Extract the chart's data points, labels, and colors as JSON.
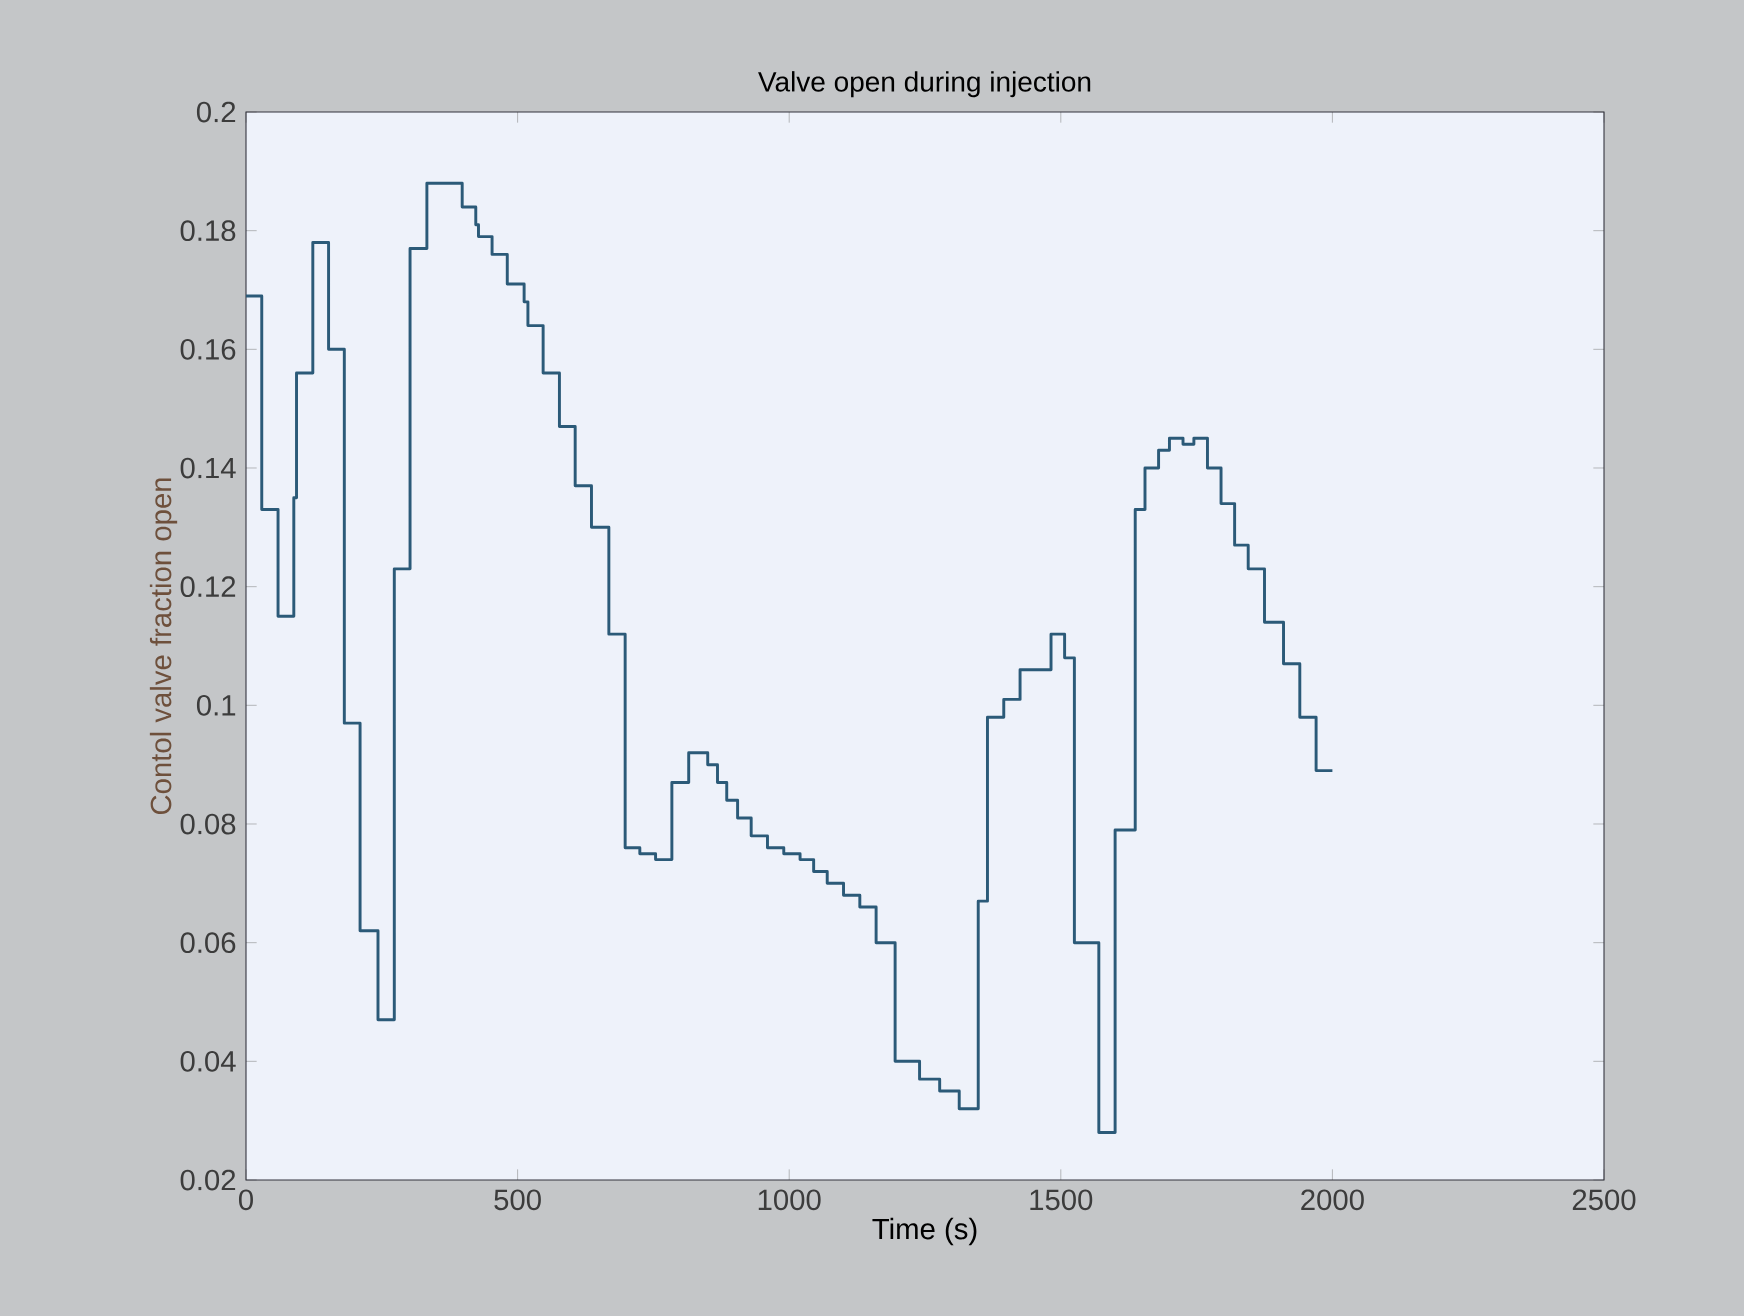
{
  "chart_data": {
    "type": "step",
    "title": "Valve open during injection",
    "xlabel": "Time (s)",
    "ylabel": "Contol valve fraction open",
    "x": [
      0,
      29,
      59,
      88,
      93,
      123,
      152,
      181,
      210,
      243,
      273,
      302,
      333,
      398,
      423,
      428,
      453,
      481,
      512,
      519,
      547,
      577,
      606,
      636,
      668,
      698,
      725,
      754,
      784,
      815,
      850,
      868,
      885,
      905,
      930,
      960,
      990,
      1020,
      1045,
      1070,
      1100,
      1130,
      1160,
      1195,
      1240,
      1277,
      1313,
      1348,
      1365,
      1395,
      1425,
      1482,
      1507,
      1525,
      1570,
      1600,
      1637,
      1655,
      1680,
      1700,
      1725,
      1745,
      1770,
      1795,
      1820,
      1845,
      1875,
      1910,
      1940,
      1970,
      2000
    ],
    "values": [
      0.169,
      0.133,
      0.115,
      0.135,
      0.156,
      0.178,
      0.16,
      0.097,
      0.062,
      0.047,
      0.123,
      0.177,
      0.188,
      0.184,
      0.181,
      0.179,
      0.176,
      0.171,
      0.168,
      0.164,
      0.156,
      0.147,
      0.137,
      0.13,
      0.112,
      0.076,
      0.075,
      0.074,
      0.087,
      0.092,
      0.09,
      0.087,
      0.084,
      0.081,
      0.078,
      0.076,
      0.075,
      0.074,
      0.072,
      0.07,
      0.068,
      0.066,
      0.06,
      0.04,
      0.037,
      0.035,
      0.032,
      0.067,
      0.098,
      0.101,
      0.106,
      0.112,
      0.108,
      0.06,
      0.028,
      0.079,
      0.133,
      0.14,
      0.143,
      0.145,
      0.144,
      0.145,
      0.14,
      0.134,
      0.127,
      0.123,
      0.114,
      0.107,
      0.098,
      0.089,
      0.089
    ],
    "color": "#2b5a78",
    "xlim": [
      0,
      2500
    ],
    "ylim": [
      0.02,
      0.2
    ],
    "xticks": [
      0,
      500,
      1000,
      1500,
      2000,
      2500
    ],
    "yticks": [
      0.02,
      0.04,
      0.06,
      0.08,
      0.1,
      0.12,
      0.14,
      0.16,
      0.18,
      0.2
    ],
    "grid": false,
    "marker": "none",
    "line_style": "solid"
  }
}
